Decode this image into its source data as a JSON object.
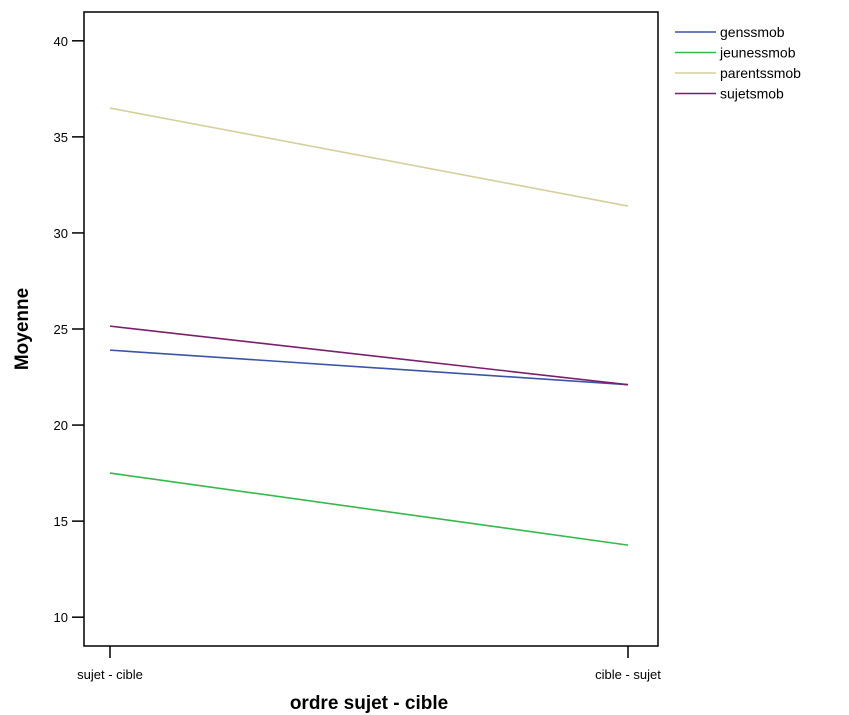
{
  "chart_data": {
    "type": "line",
    "xlabel": "ordre sujet - cible",
    "ylabel": "Moyenne",
    "categories": [
      "sujet - cible",
      "cible - sujet"
    ],
    "ylim": [
      8.5,
      41.5
    ],
    "yticks": [
      10,
      15,
      20,
      25,
      30,
      35,
      40
    ],
    "grid": false,
    "legend_position": "top-right-outside",
    "series": [
      {
        "name": "genssmob",
        "values": [
          23.9,
          22.1
        ],
        "color": "#3b55a6"
      },
      {
        "name": "jeunessmob",
        "values": [
          17.5,
          13.75
        ],
        "color": "#35b94a"
      },
      {
        "name": "parentssmob",
        "values": [
          36.5,
          31.4
        ],
        "color": "#d6cf9c"
      },
      {
        "name": "sujetsmob",
        "values": [
          25.15,
          22.1
        ],
        "color": "#7a1f6b"
      }
    ]
  }
}
